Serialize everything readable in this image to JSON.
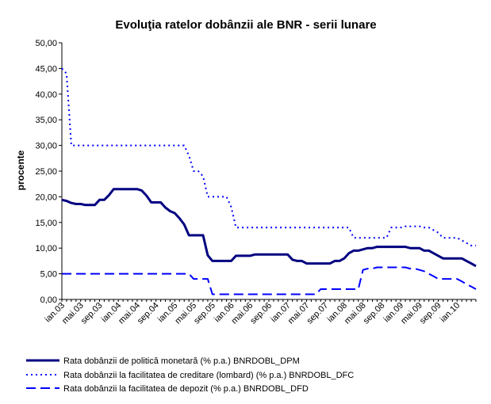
{
  "chart_data": {
    "type": "line",
    "title": "Evoluţia ratelor dobânzii ale BNR - serii lunare",
    "ylabel": "procente",
    "xlabel": "",
    "ylim": [
      0,
      50
    ],
    "yticks": [
      "0,00",
      "5,00",
      "10,00",
      "15,00",
      "20,00",
      "25,00",
      "30,00",
      "35,00",
      "40,00",
      "45,00",
      "50,00"
    ],
    "xticks": [
      "ian.03",
      "mai.03",
      "sep.03",
      "ian.04",
      "mai.04",
      "sep.04",
      "ian.05",
      "mai.05",
      "sep.05",
      "ian.06",
      "mai.06",
      "sep.06",
      "ian.07",
      "mai.07",
      "sep.07",
      "ian.08",
      "mai.08",
      "sep.08",
      "ian.09",
      "mai.09",
      "sep.09",
      "ian.10"
    ],
    "x_start": "ian.03",
    "x_end": "mai.10",
    "legend_position": "bottom",
    "grid": false,
    "series": [
      {
        "name": "Rata dobânzii de politică monetară  (% p.a.) BNRDOBL_DPM",
        "style": "solid",
        "color": "#000080",
        "values": [
          19.4,
          19.2,
          18.8,
          18.6,
          18.6,
          18.4,
          18.4,
          18.4,
          19.4,
          19.4,
          20.3,
          21.5,
          21.5,
          21.5,
          21.5,
          21.5,
          21.5,
          21.2,
          20.2,
          18.9,
          18.9,
          18.9,
          17.9,
          17.2,
          16.8,
          15.8,
          14.6,
          12.5,
          12.5,
          12.5,
          12.5,
          8.6,
          7.5,
          7.5,
          7.5,
          7.5,
          7.5,
          8.5,
          8.5,
          8.5,
          8.5,
          8.75,
          8.75,
          8.75,
          8.75,
          8.75,
          8.75,
          8.75,
          8.75,
          7.75,
          7.5,
          7.5,
          7.0,
          7.0,
          7.0,
          7.0,
          7.0,
          7.0,
          7.5,
          7.5,
          8.0,
          9.0,
          9.5,
          9.5,
          9.75,
          10.0,
          10.0,
          10.25,
          10.25,
          10.25,
          10.25,
          10.25,
          10.25,
          10.25,
          10.0,
          10.0,
          10.0,
          9.5,
          9.5,
          9.0,
          8.5,
          8.0,
          8.0,
          8.0,
          8.0,
          8.0,
          7.5,
          7.0,
          6.5
        ]
      },
      {
        "name": "Rata dobânzii la facilitatea de creditare (lombard) (% p.a.) BNRDOBL_DFC",
        "style": "dotted",
        "color": "#0000FF",
        "values": [
          45.0,
          44.0,
          30.0,
          30.0,
          30.0,
          30.0,
          30.0,
          30.0,
          30.0,
          30.0,
          30.0,
          30.0,
          30.0,
          30.0,
          30.0,
          30.0,
          30.0,
          30.0,
          30.0,
          30.0,
          30.0,
          30.0,
          30.0,
          30.0,
          30.0,
          30.0,
          30.0,
          28.0,
          25.0,
          25.0,
          24.0,
          20.0,
          20.0,
          20.0,
          20.0,
          20.0,
          18.0,
          14.0,
          14.0,
          14.0,
          14.0,
          14.0,
          14.0,
          14.0,
          14.0,
          14.0,
          14.0,
          14.0,
          14.0,
          14.0,
          14.0,
          14.0,
          14.0,
          14.0,
          14.0,
          14.0,
          14.0,
          14.0,
          14.0,
          14.0,
          14.0,
          14.0,
          12.0,
          12.0,
          12.0,
          12.0,
          12.0,
          12.0,
          12.0,
          12.0,
          14.0,
          14.0,
          14.0,
          14.25,
          14.25,
          14.25,
          14.25,
          14.0,
          14.0,
          13.5,
          13.0,
          12.0,
          12.0,
          12.0,
          12.0,
          11.5,
          11.0,
          10.5,
          10.5
        ]
      },
      {
        "name": "Rata dobânzii la facilitatea de depozit (% p.a.) BNRDOBL_DFD",
        "style": "dashed",
        "color": "#0000FF",
        "values": [
          5.0,
          5.0,
          5.0,
          5.0,
          5.0,
          5.0,
          5.0,
          5.0,
          5.0,
          5.0,
          5.0,
          5.0,
          5.0,
          5.0,
          5.0,
          5.0,
          5.0,
          5.0,
          5.0,
          5.0,
          5.0,
          5.0,
          5.0,
          5.0,
          5.0,
          5.0,
          5.0,
          5.0,
          4.0,
          4.0,
          4.0,
          4.0,
          1.0,
          1.0,
          1.0,
          1.0,
          1.0,
          1.0,
          1.0,
          1.0,
          1.0,
          1.0,
          1.0,
          1.0,
          1.0,
          1.0,
          1.0,
          1.0,
          1.0,
          1.0,
          1.0,
          1.0,
          1.0,
          1.0,
          1.0,
          2.0,
          2.0,
          2.0,
          2.0,
          2.0,
          2.0,
          2.0,
          2.0,
          2.0,
          5.75,
          6.0,
          6.0,
          6.25,
          6.25,
          6.25,
          6.25,
          6.25,
          6.25,
          6.25,
          6.0,
          6.0,
          5.75,
          5.5,
          5.0,
          4.5,
          4.0,
          4.0,
          4.0,
          4.0,
          4.0,
          3.5,
          3.0,
          2.5,
          2.0
        ]
      }
    ]
  }
}
